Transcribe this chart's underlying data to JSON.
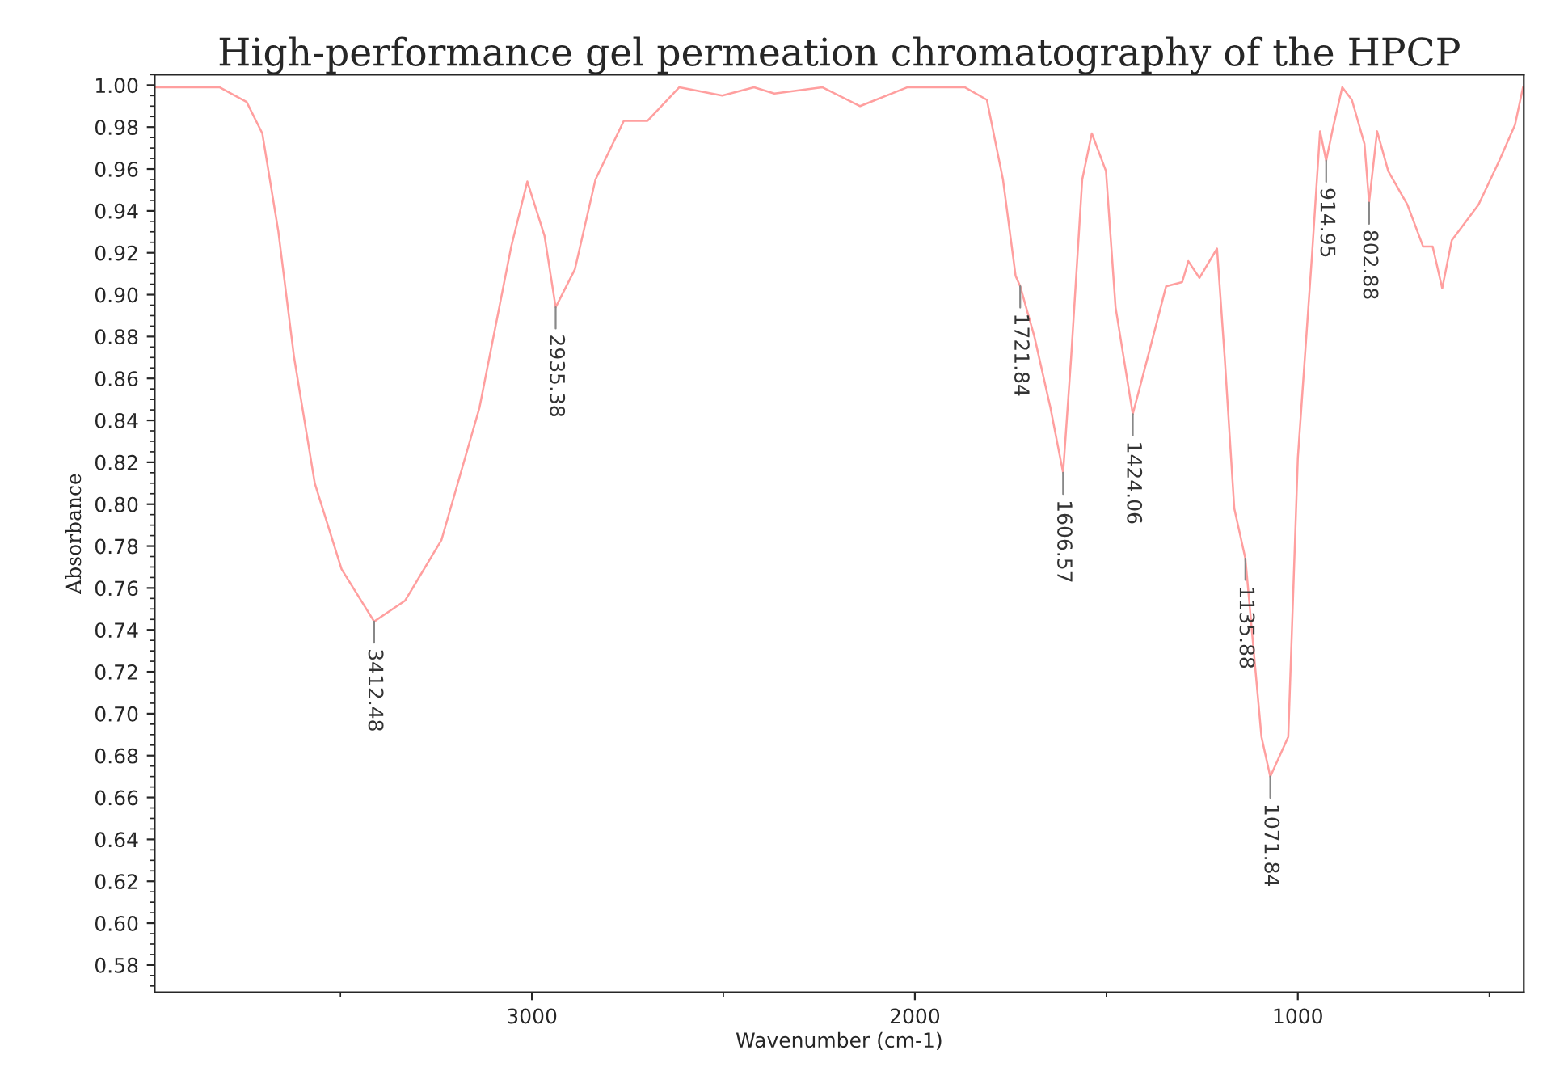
{
  "chart_data": {
    "type": "line",
    "title": "High-performance gel permeation chromatography of the HPCP",
    "xlabel": "Wavenumber (cm-1)",
    "ylabel": "Absorbance",
    "series": [
      {
        "color": "#ff9f9f",
        "x": [
          3985,
          3816,
          3745,
          3704,
          3662,
          3621,
          3567,
          3497,
          3412,
          3331,
          3236,
          3137,
          3054,
          3012,
          2967,
          2938,
          2888,
          2834,
          2760,
          2698,
          2615,
          2503,
          2420,
          2367,
          2242,
          2143,
          2019,
          1870,
          1812,
          1770,
          1737,
          1725,
          1688,
          1646,
          1613,
          1592,
          1563,
          1538,
          1501,
          1476,
          1431,
          1385,
          1344,
          1302,
          1286,
          1257,
          1211,
          1191,
          1166,
          1137,
          1095,
          1072,
          1025,
          1000,
          963,
          942,
          926,
          909,
          884,
          859,
          826,
          814,
          793,
          764,
          714,
          673,
          648,
          623,
          598,
          528,
          474,
          433,
          412
        ],
        "values": [
          0.999,
          0.999,
          0.992,
          0.977,
          0.93,
          0.87,
          0.81,
          0.769,
          0.744,
          0.754,
          0.783,
          0.846,
          0.923,
          0.954,
          0.928,
          0.894,
          0.912,
          0.955,
          0.983,
          0.983,
          0.999,
          0.995,
          0.999,
          0.996,
          0.999,
          0.99,
          0.999,
          0.999,
          0.993,
          0.955,
          0.909,
          0.904,
          0.88,
          0.846,
          0.815,
          0.87,
          0.955,
          0.977,
          0.959,
          0.894,
          0.843,
          0.875,
          0.904,
          0.906,
          0.916,
          0.908,
          0.922,
          0.87,
          0.798,
          0.774,
          0.689,
          0.67,
          0.689,
          0.822,
          0.919,
          0.978,
          0.964,
          0.979,
          0.999,
          0.993,
          0.972,
          0.944,
          0.978,
          0.959,
          0.943,
          0.923,
          0.923,
          0.903,
          0.926,
          0.943,
          0.964,
          0.981,
          0.999
        ]
      }
    ],
    "xlim": [
      3985,
      410
    ],
    "xticks": [
      3000,
      2000,
      1000
    ],
    "ylim": [
      0.567,
      1.005
    ],
    "yticks": [
      {
        "value": 0.58,
        "label": "0.58"
      },
      {
        "value": 0.6,
        "label": "0.60"
      },
      {
        "value": 0.62,
        "label": "0.62"
      },
      {
        "value": 0.64,
        "label": "0.64"
      },
      {
        "value": 0.66,
        "label": "0.66"
      },
      {
        "value": 0.68,
        "label": "0.68"
      },
      {
        "value": 0.7,
        "label": "0.70"
      },
      {
        "value": 0.72,
        "label": "0.72"
      },
      {
        "value": 0.74,
        "label": "0.74"
      },
      {
        "value": 0.76,
        "label": "0.76"
      },
      {
        "value": 0.78,
        "label": "0.78"
      },
      {
        "value": 0.8,
        "label": "0.80"
      },
      {
        "value": 0.82,
        "label": "0.82"
      },
      {
        "value": 0.84,
        "label": "0.84"
      },
      {
        "value": 0.86,
        "label": "0.86"
      },
      {
        "value": 0.88,
        "label": "0.88"
      },
      {
        "value": 0.9,
        "label": "0.90"
      },
      {
        "value": 0.92,
        "label": "0.92"
      },
      {
        "value": 0.94,
        "label": "0.94"
      },
      {
        "value": 0.96,
        "label": "0.96"
      },
      {
        "value": 0.98,
        "label": "0.98"
      },
      {
        "value": 1.0,
        "label": "1.00"
      }
    ],
    "annotations": [
      {
        "text": "3412.48",
        "x": 3412,
        "y": 0.744
      },
      {
        "text": "2935.38",
        "x": 2938,
        "y": 0.894
      },
      {
        "text": "1721.84",
        "x": 1725,
        "y": 0.904
      },
      {
        "text": "1606.57",
        "x": 1613,
        "y": 0.815
      },
      {
        "text": "1424.06",
        "x": 1431,
        "y": 0.843
      },
      {
        "text": "1135.88",
        "x": 1137,
        "y": 0.774
      },
      {
        "text": "1071.84",
        "x": 1072,
        "y": 0.67
      },
      {
        "text": "914.95",
        "x": 926,
        "y": 0.964
      },
      {
        "text": "802.88",
        "x": 814,
        "y": 0.944
      }
    ],
    "grid": false,
    "legend": false
  }
}
